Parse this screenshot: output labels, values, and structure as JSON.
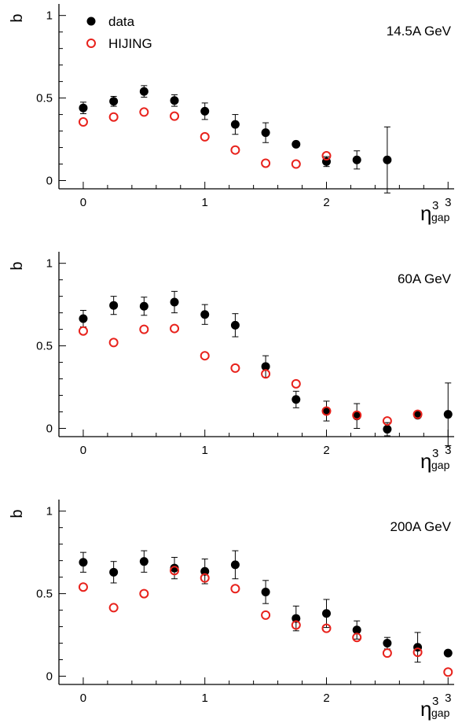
{
  "chart_data": [
    {
      "type": "scatter",
      "panel_label": "14.5A GeV",
      "xlabel": "η",
      "xlabel_sup": "3",
      "xlabel_sub": "gap",
      "ylabel": "b",
      "xlim": [
        -0.2,
        3.05
      ],
      "ylim": [
        -0.05,
        1.07
      ],
      "xticks": [
        0,
        1,
        2,
        3
      ],
      "yticks": [
        0,
        0.5,
        1
      ],
      "ytick_labels": [
        "0",
        "0.5",
        "1"
      ],
      "legend": {
        "position": "top-left",
        "data_label": "data",
        "model_label": "HIJING"
      },
      "series": [
        {
          "name": "data",
          "marker": "filled-circle",
          "color": "#000000",
          "x": [
            0,
            0.25,
            0.5,
            0.75,
            1,
            1.25,
            1.5,
            1.75,
            2,
            2.25,
            2.5
          ],
          "y": [
            0.44,
            0.48,
            0.54,
            0.485,
            0.42,
            0.34,
            0.29,
            0.22,
            0.115,
            0.125,
            0.125
          ],
          "yerr": [
            0.035,
            0.03,
            0.035,
            0.035,
            0.05,
            0.06,
            0.06,
            0.015,
            0.03,
            0.055,
            0.2
          ]
        },
        {
          "name": "HIJING",
          "marker": "open-circle",
          "color": "#e8221c",
          "x": [
            0,
            0.25,
            0.5,
            0.75,
            1,
            1.25,
            1.5,
            1.75,
            2
          ],
          "y": [
            0.355,
            0.385,
            0.415,
            0.39,
            0.265,
            0.185,
            0.105,
            0.1,
            0.15
          ]
        }
      ]
    },
    {
      "type": "scatter",
      "panel_label": "60A GeV",
      "xlabel": "η",
      "xlabel_sup": "3",
      "xlabel_sub": "gap",
      "ylabel": "b",
      "xlim": [
        -0.2,
        3.05
      ],
      "ylim": [
        -0.05,
        1.07
      ],
      "xticks": [
        0,
        1,
        2,
        3
      ],
      "yticks": [
        0,
        0.5,
        1
      ],
      "ytick_labels": [
        "0",
        "0.5",
        "1"
      ],
      "series": [
        {
          "name": "data",
          "marker": "filled-circle",
          "color": "#000000",
          "x": [
            0,
            0.25,
            0.5,
            0.75,
            1,
            1.25,
            1.5,
            1.75,
            2,
            2.25,
            2.5,
            2.75,
            3
          ],
          "y": [
            0.665,
            0.745,
            0.74,
            0.765,
            0.69,
            0.625,
            0.375,
            0.175,
            0.105,
            0.075,
            -0.005,
            0.08,
            0.085
          ],
          "yerr": [
            0.05,
            0.055,
            0.055,
            0.065,
            0.06,
            0.07,
            0.065,
            0.05,
            0.06,
            0.075,
            0.04,
            0.01,
            0.19
          ]
        },
        {
          "name": "HIJING",
          "marker": "open-circle",
          "color": "#e8221c",
          "x": [
            0,
            0.25,
            0.5,
            0.75,
            1,
            1.25,
            1.5,
            1.75,
            2,
            2.25,
            2.5,
            2.75
          ],
          "y": [
            0.59,
            0.52,
            0.6,
            0.605,
            0.44,
            0.365,
            0.33,
            0.27,
            0.105,
            0.08,
            0.045,
            0.085
          ]
        }
      ]
    },
    {
      "type": "scatter",
      "panel_label": "200A GeV",
      "xlabel": "η",
      "xlabel_sup": "3",
      "xlabel_sub": "gap",
      "ylabel": "b",
      "xlim": [
        -0.2,
        3.05
      ],
      "ylim": [
        -0.05,
        1.07
      ],
      "xticks": [
        0,
        1,
        2,
        3
      ],
      "yticks": [
        0,
        0.5,
        1
      ],
      "ytick_labels": [
        "0",
        "0.5",
        "1"
      ],
      "series": [
        {
          "name": "data",
          "marker": "filled-circle",
          "color": "#000000",
          "x": [
            0,
            0.25,
            0.5,
            0.75,
            1,
            1.25,
            1.5,
            1.75,
            2,
            2.25,
            2.5,
            2.75,
            3
          ],
          "y": [
            0.69,
            0.63,
            0.695,
            0.655,
            0.635,
            0.675,
            0.51,
            0.35,
            0.38,
            0.28,
            0.2,
            0.175,
            0.14
          ],
          "yerr": [
            0.06,
            0.065,
            0.065,
            0.065,
            0.075,
            0.085,
            0.07,
            0.075,
            0.085,
            0.055,
            0.035,
            0.09,
            0.015
          ]
        },
        {
          "name": "HIJING",
          "marker": "open-circle",
          "color": "#e8221c",
          "x": [
            0,
            0.25,
            0.5,
            0.75,
            1,
            1.25,
            1.5,
            1.75,
            2,
            2.25,
            2.5,
            2.75,
            3
          ],
          "y": [
            0.54,
            0.415,
            0.5,
            0.64,
            0.595,
            0.53,
            0.37,
            0.31,
            0.29,
            0.235,
            0.14,
            0.145,
            0.025
          ]
        }
      ]
    }
  ]
}
